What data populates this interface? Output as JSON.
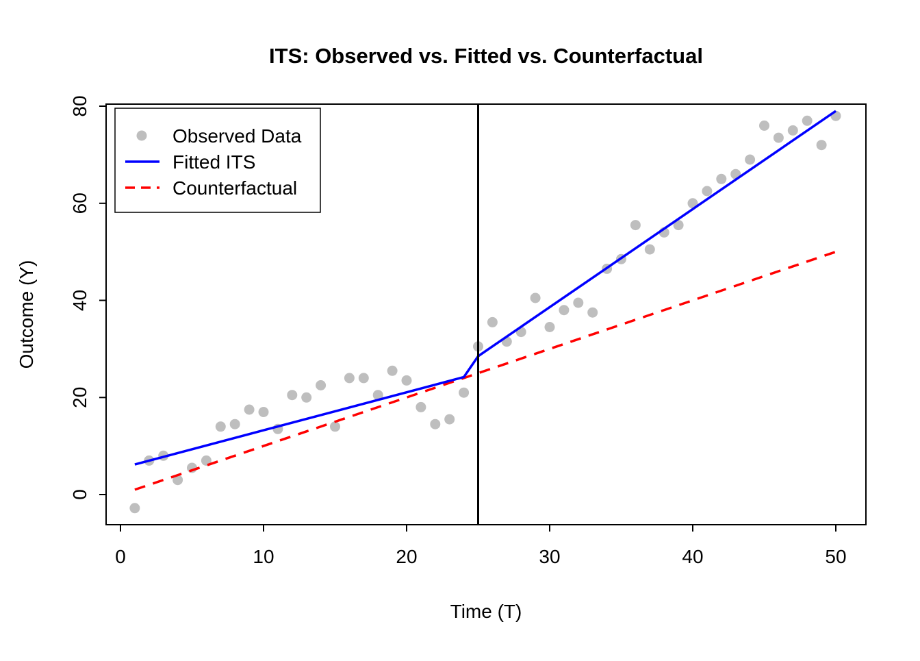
{
  "chart_data": {
    "type": "scatter",
    "title": "ITS: Observed vs. Fitted vs. Counterfactual",
    "xlabel": "Time (T)",
    "ylabel": "Outcome (Y)",
    "xlim": [
      0,
      50
    ],
    "ylim": [
      0,
      80
    ],
    "x_ticks": [
      0,
      10,
      20,
      30,
      40,
      50
    ],
    "y_ticks": [
      0,
      20,
      40,
      60,
      80
    ],
    "grid": false,
    "legend": {
      "position": "topleft",
      "entries": [
        {
          "label": "Observed Data",
          "symbol": "point",
          "color": "#bebebe"
        },
        {
          "label": "Fitted ITS",
          "symbol": "solid-line",
          "color": "#0000ff"
        },
        {
          "label": "Counterfactual",
          "symbol": "dashed-line",
          "color": "#ff0000"
        }
      ]
    },
    "intervention_line": {
      "x": 25,
      "color": "#000000"
    },
    "observed": {
      "name": "Observed Data",
      "color": "#bebebe",
      "x": [
        1,
        2,
        3,
        4,
        5,
        6,
        7,
        8,
        9,
        10,
        11,
        12,
        13,
        14,
        15,
        16,
        17,
        18,
        19,
        20,
        21,
        22,
        23,
        24,
        25,
        26,
        27,
        28,
        29,
        30,
        31,
        32,
        33,
        34,
        35,
        36,
        37,
        38,
        39,
        40,
        41,
        42,
        43,
        44,
        45,
        46,
        47,
        48,
        49,
        50
      ],
      "y": [
        -2.8,
        7,
        8,
        3,
        5.5,
        7,
        14,
        14.5,
        17.5,
        17,
        13.5,
        20.5,
        20,
        22.5,
        14,
        24,
        24,
        20.5,
        25.5,
        23.5,
        18,
        14.5,
        15.5,
        21,
        30.5,
        35.5,
        31.5,
        33.5,
        40.5,
        34.5,
        38,
        39.5,
        37.5,
        46.5,
        48.5,
        55.5,
        50.5,
        54,
        55.5,
        60,
        62.5,
        65,
        66,
        69,
        76,
        73.5,
        75,
        77,
        72,
        78
      ]
    },
    "fitted": {
      "name": "Fitted ITS",
      "color": "#0000ff",
      "points": [
        [
          1,
          6.2
        ],
        [
          24,
          24.2
        ],
        [
          25,
          28.5
        ],
        [
          50,
          79
        ]
      ]
    },
    "counterfactual": {
      "name": "Counterfactual",
      "color": "#ff0000",
      "points": [
        [
          1,
          1
        ],
        [
          50,
          50
        ]
      ]
    }
  }
}
